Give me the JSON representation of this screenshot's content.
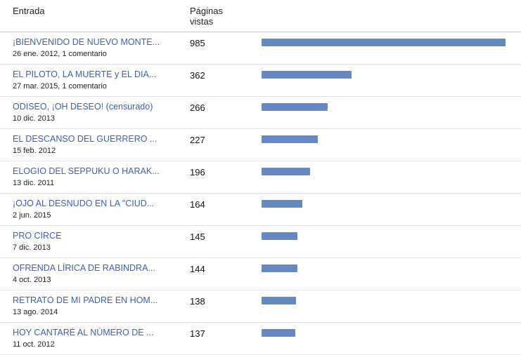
{
  "colors": {
    "bar": "#6389c5",
    "link": "#3d5fb8",
    "row_border": "#e3e3e3",
    "header_border": "#c6c6c6"
  },
  "table": {
    "col_entry": "Entrada",
    "col_views_line1": "Páginas",
    "col_views_line2": "vistas",
    "max_views": 985,
    "rows": [
      {
        "title": "¡BIENVENIDO DE NUEVO MONTE...",
        "date": "26 ene. 2012, 1 comentario",
        "views": 985
      },
      {
        "title": "EL PILOTO, LA MUERTE y EL DIA...",
        "date": "27 mar. 2015, 1 comentario",
        "views": 362
      },
      {
        "title": "ODISEO, ¡OH DESEO! (censurado)",
        "date": "10 dic. 2013",
        "views": 266
      },
      {
        "title": "EL DESCANSO DEL GUERRERO ...",
        "date": "15 feb. 2012",
        "views": 227
      },
      {
        "title": "ELOGIO DEL SEPPUKU O HARAK...",
        "date": "13 dic. 2011",
        "views": 196
      },
      {
        "title": "¡OJO AL DESNUDO EN LA \"CIUD...",
        "date": "2 jun. 2015",
        "views": 164
      },
      {
        "title": "PRO CIRCE",
        "date": "7 dic. 2013",
        "views": 145
      },
      {
        "title": "OFRENDA LÍRICA DE RABINDRA...",
        "date": "4 oct. 2013",
        "views": 144
      },
      {
        "title": "RETRATO DE MI PADRE EN HOM...",
        "date": "13 ago. 2014",
        "views": 138
      },
      {
        "title": "HOY CANTARÉ AL NÚMERO DE ...",
        "date": "11 oct. 2012",
        "views": 137
      }
    ]
  }
}
